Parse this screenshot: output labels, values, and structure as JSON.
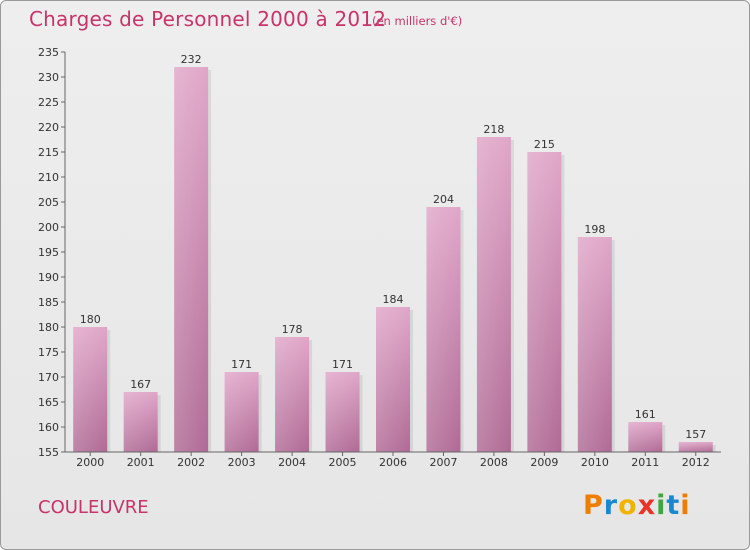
{
  "chart_data": {
    "type": "bar",
    "title": "Charges de Personnel 2000 à 2012",
    "subtitle": "(en milliers d'€)",
    "xlabel": "",
    "ylabel": "",
    "categories": [
      "2000",
      "2001",
      "2002",
      "2003",
      "2004",
      "2005",
      "2006",
      "2007",
      "2008",
      "2009",
      "2010",
      "2011",
      "2012"
    ],
    "values": [
      180,
      167,
      232,
      171,
      178,
      171,
      184,
      204,
      218,
      215,
      198,
      161,
      157
    ],
    "ylim": [
      155,
      235
    ],
    "yticks": [
      155,
      160,
      165,
      170,
      175,
      180,
      185,
      190,
      195,
      200,
      205,
      210,
      215,
      220,
      225,
      230,
      235
    ],
    "grid": false,
    "bar_color_top": "#e0a6c8",
    "bar_color_bottom": "#b06a95",
    "accent_color": "#c8336a"
  },
  "footer": {
    "commune": "COULEUVRE",
    "logo_letters": [
      {
        "char": "P",
        "color": "#f07d00"
      },
      {
        "char": "r",
        "color": "#1a88d0"
      },
      {
        "char": "o",
        "color": "#f0b400"
      },
      {
        "char": "x",
        "color": "#e8332a"
      },
      {
        "char": "i",
        "color": "#40a640"
      },
      {
        "char": "t",
        "color": "#1a88d0"
      },
      {
        "char": "i",
        "color": "#f07d00"
      }
    ]
  }
}
